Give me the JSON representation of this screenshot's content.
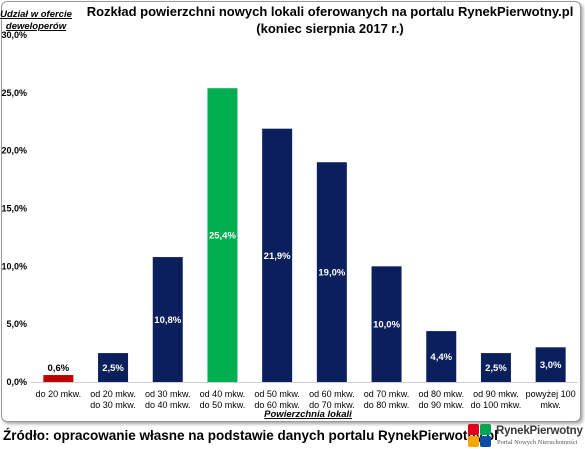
{
  "chart_data": {
    "type": "bar",
    "title": "Rozkład powierzchni nowych lokali oferowanych na portalu RynekPierwotny.pl",
    "subtitle": "(koniec sierpnia 2017 r.)",
    "ylabel_lines": [
      "Udział w ofercie",
      "deweloperów"
    ],
    "xlabel": "Powierzchnia lokali",
    "ylim": [
      0,
      30
    ],
    "yticks": [
      "0,0%",
      "5,0%",
      "10,0%",
      "15,0%",
      "20,0%",
      "25,0%",
      "30,0%"
    ],
    "grid": false,
    "categories": [
      [
        "do 20 mkw."
      ],
      [
        "od 20 mkw.",
        "do 30 mkw."
      ],
      [
        "od 30 mkw.",
        "do 40 mkw."
      ],
      [
        "od 40 mkw.",
        "do 50 mkw."
      ],
      [
        "od 50 mkw.",
        "do 60 mkw."
      ],
      [
        "od 60 mkw.",
        "do 70 mkw."
      ],
      [
        "od 70 mkw.",
        "do 80 mkw."
      ],
      [
        "od 80 mkw.",
        "do 90 mkw."
      ],
      [
        "od 90 mkw.",
        "do 100 mkw."
      ],
      [
        "powyżej 100",
        "mkw."
      ]
    ],
    "values": [
      0.6,
      2.5,
      10.8,
      25.4,
      21.9,
      19.0,
      10.0,
      4.4,
      2.5,
      3.0
    ],
    "data_labels": [
      "0,6%",
      "2,5%",
      "10,8%",
      "25,4%",
      "21,9%",
      "19,0%",
      "10,0%",
      "4,4%",
      "2,5%",
      "3,0%"
    ],
    "colors": [
      "#c00000",
      "#0b1f5c",
      "#0b1f5c",
      "#00b050",
      "#0b1f5c",
      "#0b1f5c",
      "#0b1f5c",
      "#0b1f5c",
      "#0b1f5c",
      "#0b1f5c"
    ]
  },
  "footer": {
    "source": "Źródło: opracowanie własne na podstawie danych portalu RynekPierwotny.pl"
  },
  "logo": {
    "name": "RynekPierwotny",
    "tagline": "Portal Nowych Nieruchomości",
    "colors": [
      "#e2001a",
      "#00a651",
      "#f7a600",
      "#0b4ea2"
    ]
  }
}
